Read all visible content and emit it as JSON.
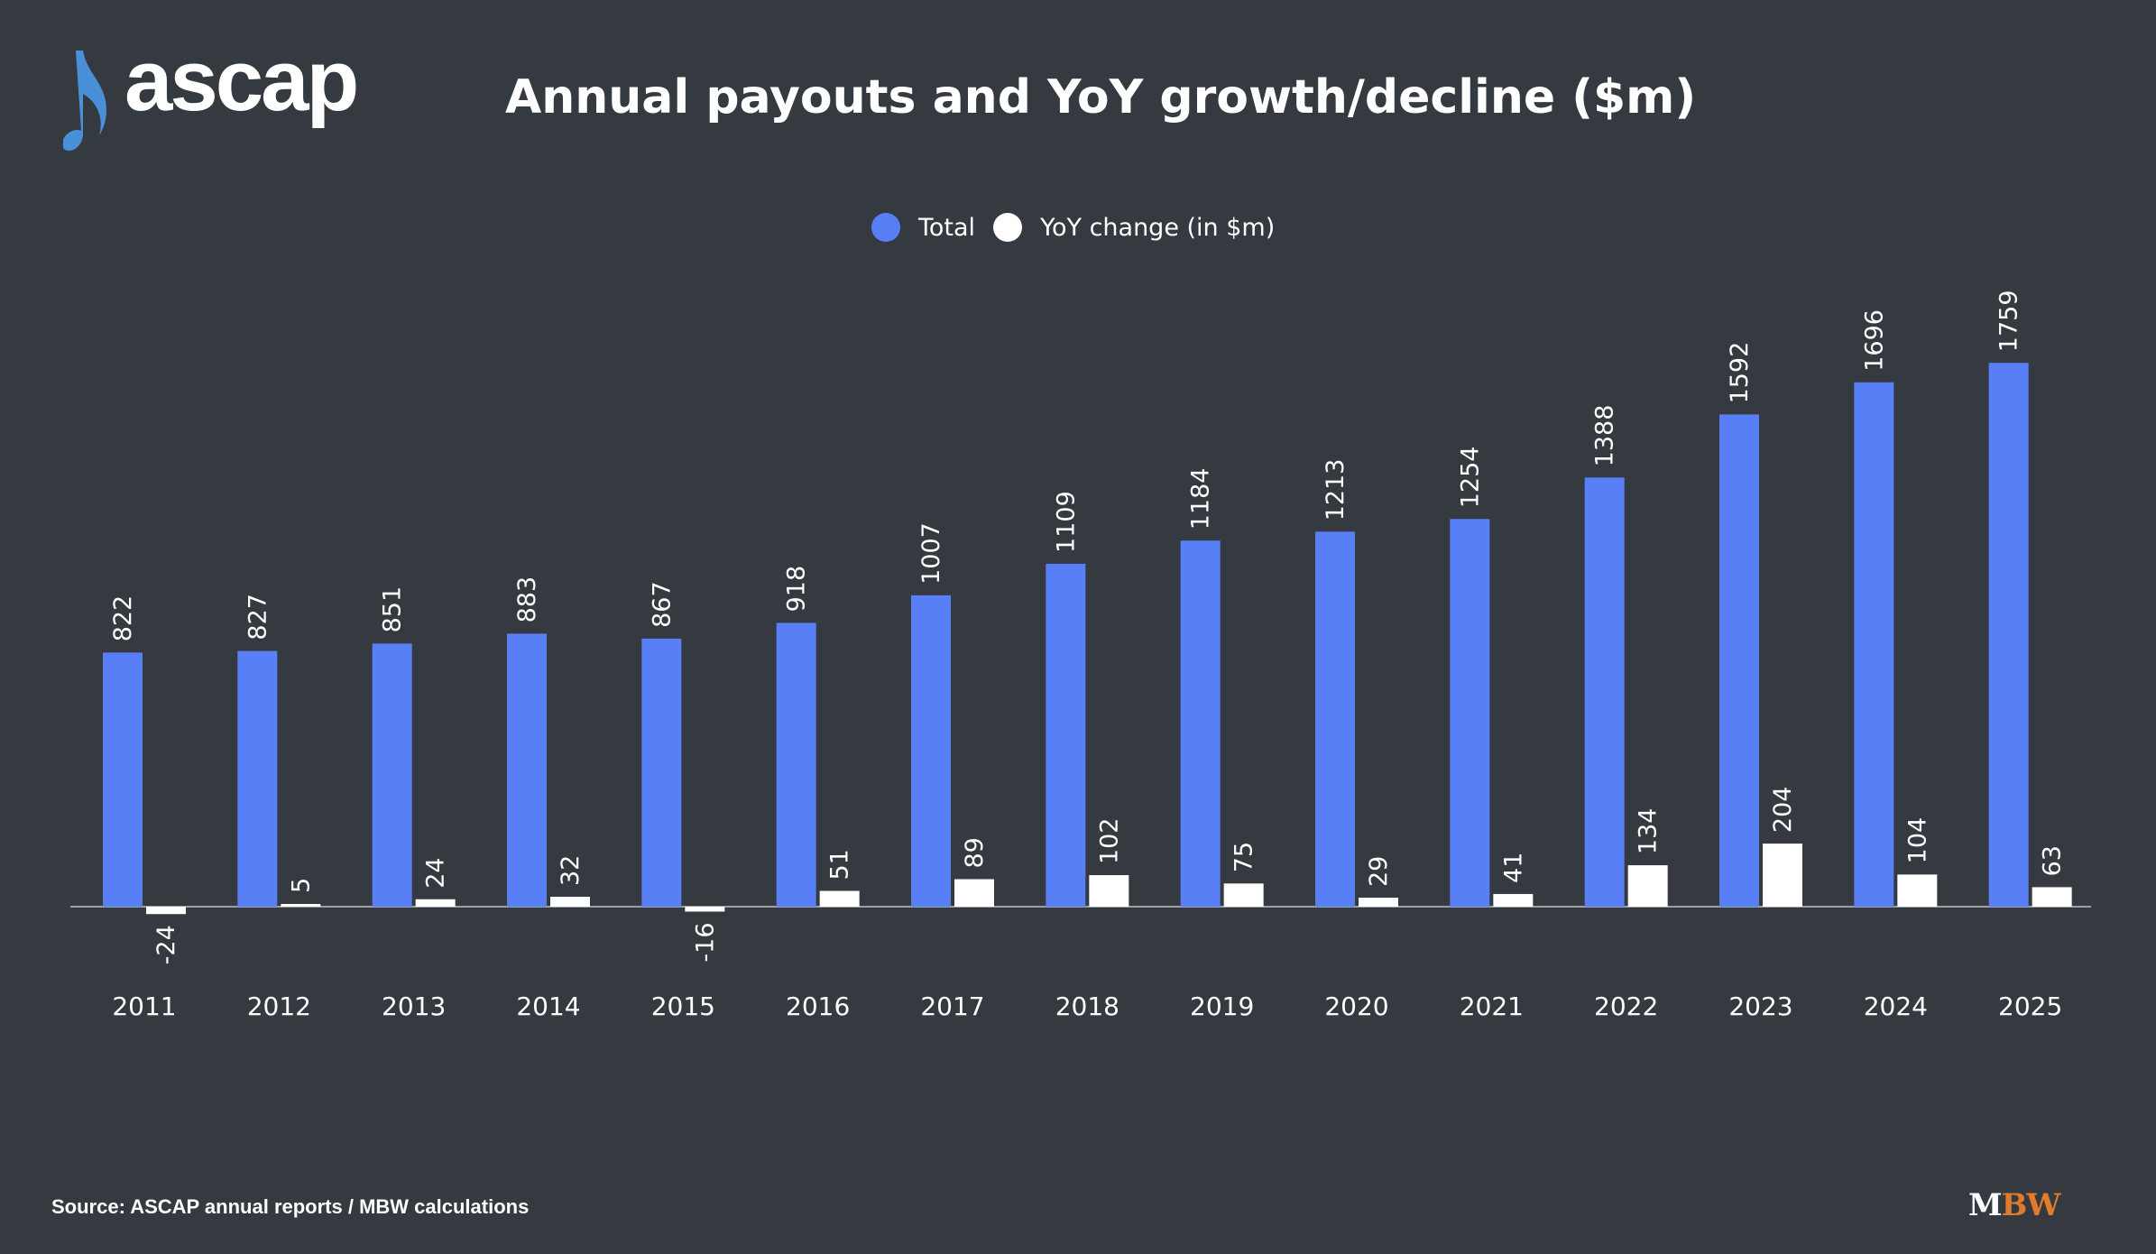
{
  "brand": {
    "logo_text": "ascap",
    "logo_color": "#4a90d9"
  },
  "chart_data": {
    "type": "bar",
    "title": "Annual payouts and YoY growth/decline ($m)",
    "categories": [
      "2011",
      "2012",
      "2013",
      "2014",
      "2015",
      "2016",
      "2017",
      "2018",
      "2019",
      "2020",
      "2021",
      "2022",
      "2023",
      "2024",
      "2025"
    ],
    "series": [
      {
        "name": "Total",
        "color": "#587ff5",
        "values": [
          822,
          827,
          851,
          883,
          867,
          918,
          1007,
          1109,
          1184,
          1213,
          1254,
          1388,
          1592,
          1696,
          1759
        ]
      },
      {
        "name": "YoY change (in $m)",
        "color": "#ffffff",
        "values": [
          -24,
          5,
          24,
          32,
          -16,
          51,
          89,
          102,
          75,
          29,
          41,
          134,
          204,
          104,
          63
        ]
      }
    ],
    "legend_position": "top-center",
    "grid": false,
    "data_labels": "rotated-vertical"
  },
  "footer": {
    "source": "Source: ASCAP annual reports / MBW calculations",
    "mbw_m": "M",
    "mbw_bw": "BW"
  },
  "colors": {
    "background": "#353940",
    "total": "#587ff5",
    "yoy": "#ffffff",
    "mbw_accent": "#e07b2c"
  }
}
